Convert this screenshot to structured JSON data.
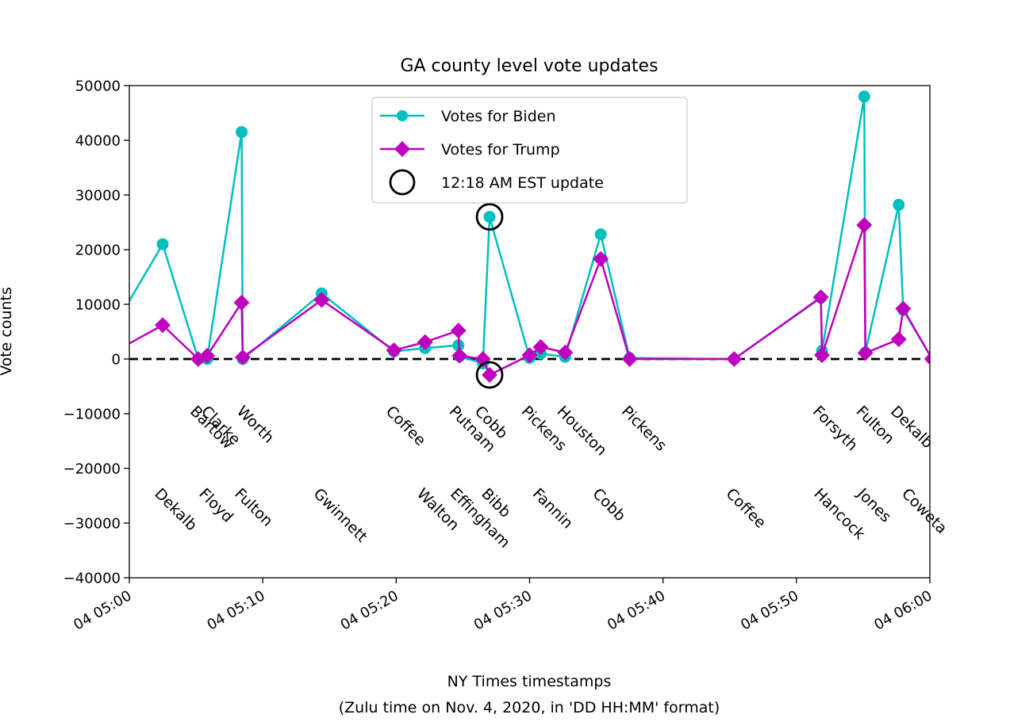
{
  "chart_data": {
    "type": "line",
    "title": "GA county level vote updates",
    "xlabel_line1": "NY Times timestamps",
    "xlabel_line2": "(Zulu time on Nov. 4, 2020, in 'DD HH:MM' format)",
    "ylabel": "Vote counts",
    "x_ticks": [
      "04 05:00",
      "04 05:10",
      "04 05:20",
      "04 05:30",
      "04 05:40",
      "04 05:50",
      "04 06:00"
    ],
    "y_ticks": [
      "50000",
      "40000",
      "30000",
      "20000",
      "10000",
      "0",
      "−10000",
      "−20000",
      "−30000",
      "−40000"
    ],
    "xlim": [
      "04 05:00",
      "04 06:00"
    ],
    "ylim": [
      -40000,
      50000
    ],
    "grid": false,
    "legend_position": "top-center",
    "reference_line": {
      "y": 0,
      "style": "dashed",
      "color": "#000000"
    },
    "series": [
      {
        "name": "Votes for Biden",
        "color": "#00bfbf",
        "marker": "circle",
        "x": [
          "04 04:59",
          "04 05:02:30",
          "04 05:05:10",
          "04 05:05:50",
          "04 05:08:25",
          "04 05:08:30",
          "04 05:14:25",
          "04 05:19:50",
          "04 05:22:10",
          "04 05:24:40",
          "04 05:24:45",
          "04 05:26:30",
          "04 05:27:00",
          "04 05:30:00",
          "04 05:30:50",
          "04 05:32:40",
          "04 05:35:20",
          "04 05:37:30",
          "04 05:45:20",
          "04 05:51:50",
          "04 05:51:55",
          "04 05:55:05",
          "04 05:55:10",
          "04 05:57:40",
          "04 05:58:00",
          "04 06:00:10"
        ],
        "y": [
          6500,
          21000,
          0,
          0,
          41500,
          0,
          12000,
          1400,
          2000,
          2500,
          500,
          -800,
          26000,
          200,
          1000,
          400,
          22800,
          200,
          0,
          11200,
          1500,
          48000,
          1200,
          28200,
          9000,
          0
        ]
      },
      {
        "name": "Votes for Trump",
        "color": "#bf00bf",
        "marker": "diamond",
        "x": [
          "04 04:59",
          "04 05:02:30",
          "04 05:05:10",
          "04 05:05:50",
          "04 05:08:25",
          "04 05:08:30",
          "04 05:14:25",
          "04 05:19:50",
          "04 05:22:10",
          "04 05:24:40",
          "04 05:24:45",
          "04 05:26:30",
          "04 05:27:00",
          "04 05:30:00",
          "04 05:30:50",
          "04 05:32:40",
          "04 05:35:20",
          "04 05:37:30",
          "04 05:45:20",
          "04 05:51:50",
          "04 05:51:55",
          "04 05:55:05",
          "04 05:55:10",
          "04 05:57:40",
          "04 05:58:00",
          "04 06:00:10"
        ],
        "y": [
          1500,
          6200,
          0,
          600,
          10300,
          300,
          10800,
          1600,
          3100,
          5200,
          600,
          0,
          -2900,
          700,
          2200,
          1200,
          18300,
          0,
          0,
          11300,
          700,
          24500,
          1100,
          3600,
          9200,
          0
        ]
      }
    ],
    "highlight": {
      "name": "12:18 AM EST update",
      "x": "04 05:27:00",
      "points": [
        26000,
        -2900
      ]
    },
    "county_labels": [
      {
        "text": "Dekalb",
        "x": "04 05:01:50",
        "row": 2
      },
      {
        "text": "Bartow",
        "x": "04 05:04:30",
        "row": 1
      },
      {
        "text": "Clarke",
        "x": "04 05:05:20",
        "row": 1
      },
      {
        "text": "Floyd",
        "x": "04 05:05:10",
        "row": 2
      },
      {
        "text": "Worth",
        "x": "04 05:08:00",
        "row": 1
      },
      {
        "text": "Fulton",
        "x": "04 05:07:50",
        "row": 2
      },
      {
        "text": "Gwinnett",
        "x": "04 05:13:45",
        "row": 2
      },
      {
        "text": "Coffee",
        "x": "04 05:19:10",
        "row": 1
      },
      {
        "text": "Walton",
        "x": "04 05:21:30",
        "row": 2
      },
      {
        "text": "Putnam",
        "x": "04 05:23:55",
        "row": 1
      },
      {
        "text": "Effingham",
        "x": "04 05:24:00",
        "row": 2
      },
      {
        "text": "Cobb",
        "x": "04 05:25:50",
        "row": 1
      },
      {
        "text": "Bibb",
        "x": "04 05:26:20",
        "row": 2
      },
      {
        "text": "Pickens",
        "x": "04 05:29:20",
        "row": 1
      },
      {
        "text": "Fannin",
        "x": "04 05:30:10",
        "row": 2
      },
      {
        "text": "Houston",
        "x": "04 05:32:00",
        "row": 1
      },
      {
        "text": "Cobb",
        "x": "04 05:34:40",
        "row": 2
      },
      {
        "text": "Pickens",
        "x": "04 05:36:50",
        "row": 1
      },
      {
        "text": "Coffee",
        "x": "04 05:44:40",
        "row": 2
      },
      {
        "text": "Forsyth",
        "x": "04 05:51:10",
        "row": 1
      },
      {
        "text": "Hancock",
        "x": "04 05:51:15",
        "row": 2
      },
      {
        "text": "Fulton",
        "x": "04 05:54:25",
        "row": 1
      },
      {
        "text": "Jones",
        "x": "04 05:54:30",
        "row": 2
      },
      {
        "text": "Dekalb",
        "x": "04 05:57:00",
        "row": 1
      },
      {
        "text": "Coweta",
        "x": "04 05:57:50",
        "row": 2
      }
    ]
  }
}
